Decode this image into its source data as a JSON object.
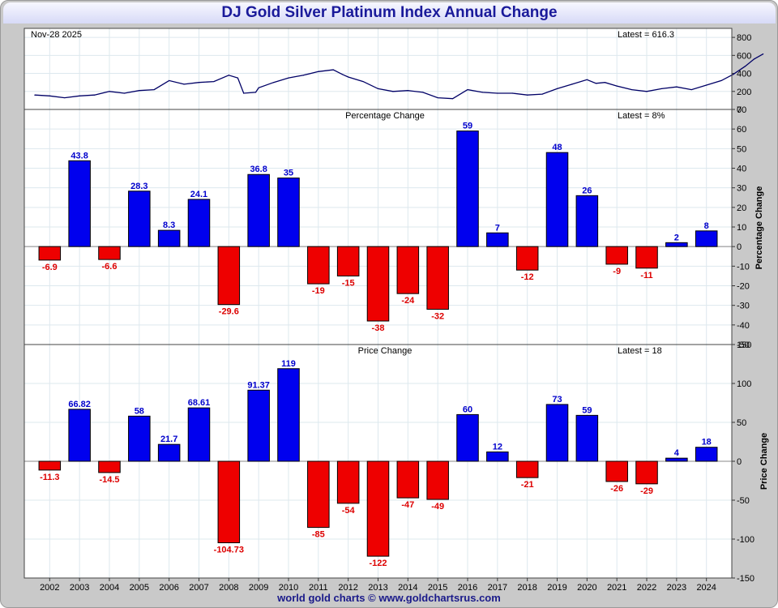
{
  "title": "DJ Gold Silver Platinum Index Annual Change",
  "footer": "world gold charts © www.goldchartsrus.com",
  "colors": {
    "positive": "#0000ee",
    "negative": "#ee0000",
    "line": "#000066",
    "positive_label": "#0000cc",
    "negative_label": "#dd0000"
  },
  "chart_data": [
    {
      "type": "line",
      "title": "",
      "date_label": "Nov-28  2025",
      "latest_label": "Latest = 616.3",
      "ylim": [
        0,
        900
      ],
      "yticks": [
        0,
        200,
        400,
        600,
        800
      ],
      "x": [
        2001.5,
        2002,
        2002.5,
        2003,
        2003.5,
        2004,
        2004.5,
        2005,
        2005.5,
        2006,
        2006.5,
        2007,
        2007.5,
        2008,
        2008.3,
        2008.5,
        2008.9,
        2009,
        2009.5,
        2010,
        2010.5,
        2011,
        2011.5,
        2011.8,
        2012,
        2012.5,
        2013,
        2013.5,
        2014,
        2014.5,
        2015,
        2015.5,
        2016,
        2016.5,
        2017,
        2017.5,
        2018,
        2018.5,
        2019,
        2019.5,
        2020,
        2020.3,
        2020.6,
        2021,
        2021.5,
        2022,
        2022.5,
        2023,
        2023.5,
        2024,
        2024.5,
        2024.9,
        2025.3,
        2025.6,
        2025.9
      ],
      "values": [
        160,
        150,
        130,
        150,
        160,
        200,
        180,
        210,
        220,
        320,
        280,
        300,
        310,
        380,
        350,
        180,
        190,
        240,
        300,
        350,
        380,
        420,
        440,
        390,
        360,
        310,
        230,
        200,
        210,
        190,
        130,
        120,
        220,
        190,
        180,
        180,
        160,
        170,
        230,
        280,
        330,
        290,
        300,
        260,
        220,
        200,
        230,
        250,
        220,
        270,
        320,
        390,
        480,
        560,
        616
      ]
    },
    {
      "type": "bar",
      "title": "Percentage Change",
      "latest_label": "Latest = 8%",
      "ylabel": "Percentage Change",
      "ylim": [
        -50,
        70
      ],
      "yticks": [
        -50,
        -40,
        -30,
        -20,
        -10,
        0,
        10,
        20,
        30,
        40,
        50,
        60,
        70
      ],
      "categories": [
        "2002",
        "2003",
        "2004",
        "2005",
        "2006",
        "2007",
        "2008",
        "2009",
        "2010",
        "2011",
        "2012",
        "2013",
        "2014",
        "2015",
        "2016",
        "2017",
        "2018",
        "2019",
        "2020",
        "2021",
        "2022",
        "2023",
        "2024"
      ],
      "values": [
        -6.9,
        43.8,
        -6.6,
        28.3,
        8.3,
        24.1,
        -29.6,
        36.8,
        35,
        -19,
        -15,
        -38,
        -24,
        -32,
        59,
        7,
        -12,
        48,
        26,
        -9,
        -11,
        2,
        8
      ],
      "labels": [
        "-6.9",
        "43.8",
        "-6.6",
        "28.3",
        "8.3",
        "24.1",
        "-29.6",
        "36.8",
        "35",
        "-19",
        "-15",
        "-38",
        "-24",
        "-32",
        "59",
        "7",
        "-12",
        "48",
        "26",
        "-9",
        "-11",
        "2",
        "8"
      ]
    },
    {
      "type": "bar",
      "title": "Price Change",
      "latest_label": "Latest = 18",
      "ylabel": "Price Change",
      "ylim": [
        -150,
        150
      ],
      "yticks": [
        -150,
        -100,
        -50,
        0,
        50,
        100,
        150
      ],
      "categories": [
        "2002",
        "2003",
        "2004",
        "2005",
        "2006",
        "2007",
        "2008",
        "2009",
        "2010",
        "2011",
        "2012",
        "2013",
        "2014",
        "2015",
        "2016",
        "2017",
        "2018",
        "2019",
        "2020",
        "2021",
        "2022",
        "2023",
        "2024"
      ],
      "values": [
        -11.3,
        66.82,
        -14.5,
        58,
        21.7,
        68.61,
        -104.73,
        91.37,
        119,
        -85,
        -54,
        -122,
        -47,
        -49,
        60,
        12,
        -21,
        73,
        59,
        -26,
        -29,
        4,
        18
      ],
      "labels": [
        "-11.3",
        "66.82",
        "-14.5",
        "58",
        "21.7",
        "68.61",
        "-104.73",
        "91.37",
        "119",
        "-85",
        "-54",
        "-122",
        "-47",
        "-49",
        "60",
        "12",
        "-21",
        "73",
        "59",
        "-26",
        "-29",
        "4",
        "18"
      ]
    }
  ]
}
